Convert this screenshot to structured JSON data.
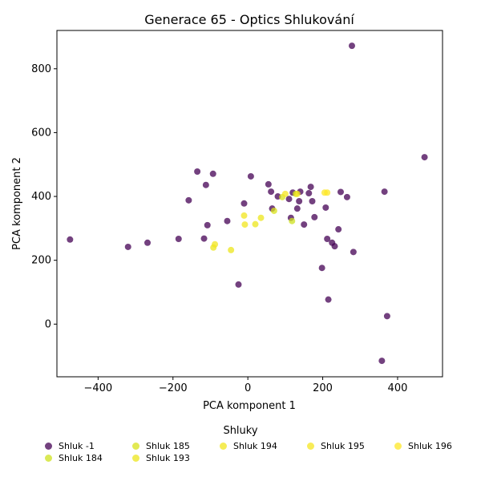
{
  "chart_data": {
    "type": "scatter",
    "title": "Generace 65 - Optics Shlukování",
    "xlabel": "PCA komponent 1",
    "ylabel": "PCA komponent 2",
    "xlim": [
      -510,
      520
    ],
    "ylim": [
      -165,
      920
    ],
    "xticks": [
      -400,
      -200,
      0,
      200,
      400
    ],
    "yticks": [
      0,
      200,
      400,
      600,
      800
    ],
    "grid": false,
    "legend_title": "Shluky",
    "legend_placement": "bottom",
    "series": [
      {
        "name": "Shluk -1",
        "color": "#440154",
        "points": [
          [
            -475,
            265
          ],
          [
            -320,
            242
          ],
          [
            -268,
            255
          ],
          [
            -185,
            267
          ],
          [
            -158,
            388
          ],
          [
            -135,
            478
          ],
          [
            -117,
            268
          ],
          [
            -112,
            436
          ],
          [
            -108,
            310
          ],
          [
            -93,
            471
          ],
          [
            -55,
            323
          ],
          [
            -25,
            124
          ],
          [
            -10,
            378
          ],
          [
            8,
            463
          ],
          [
            55,
            438
          ],
          [
            62,
            415
          ],
          [
            65,
            362
          ],
          [
            80,
            400
          ],
          [
            110,
            392
          ],
          [
            115,
            333
          ],
          [
            120,
            412
          ],
          [
            132,
            362
          ],
          [
            137,
            385
          ],
          [
            140,
            415
          ],
          [
            150,
            312
          ],
          [
            163,
            410
          ],
          [
            168,
            430
          ],
          [
            172,
            385
          ],
          [
            178,
            335
          ],
          [
            198,
            176
          ],
          [
            208,
            365
          ],
          [
            212,
            267
          ],
          [
            215,
            77
          ],
          [
            225,
            255
          ],
          [
            232,
            244
          ],
          [
            242,
            297
          ],
          [
            248,
            414
          ],
          [
            265,
            398
          ],
          [
            278,
            872
          ],
          [
            282,
            226
          ],
          [
            358,
            -115
          ],
          [
            365,
            415
          ],
          [
            372,
            25
          ],
          [
            472,
            523
          ]
        ]
      },
      {
        "name": "Shluk 184",
        "color": "#cde11d",
        "points": [
          [
            118,
            323
          ],
          [
            128,
            408
          ]
        ]
      },
      {
        "name": "Shluk 185",
        "color": "#d8e219",
        "points": [
          [
            70,
            355
          ],
          [
            92,
            398
          ]
        ]
      },
      {
        "name": "Shluk 193",
        "color": "#ece51b",
        "points": [
          [
            -92,
            240
          ],
          [
            -45,
            232
          ],
          [
            35,
            333
          ],
          [
            20,
            313
          ]
        ]
      },
      {
        "name": "Shluk 194",
        "color": "#f1e51d",
        "points": [
          [
            -88,
            250
          ],
          [
            -10,
            340
          ],
          [
            -8,
            312
          ]
        ]
      },
      {
        "name": "Shluk 195",
        "color": "#f6e620",
        "points": [
          [
            100,
            408
          ],
          [
            132,
            408
          ]
        ]
      },
      {
        "name": "Shluk 196",
        "color": "#fde725",
        "points": [
          [
            205,
            412
          ],
          [
            212,
            412
          ]
        ]
      }
    ],
    "legend_columns": [
      [
        "Shluk -1",
        "Shluk 184"
      ],
      [
        "Shluk 185",
        "Shluk 193"
      ],
      [
        "Shluk 194"
      ],
      [
        "Shluk 195"
      ],
      [
        "Shluk 196"
      ]
    ]
  }
}
